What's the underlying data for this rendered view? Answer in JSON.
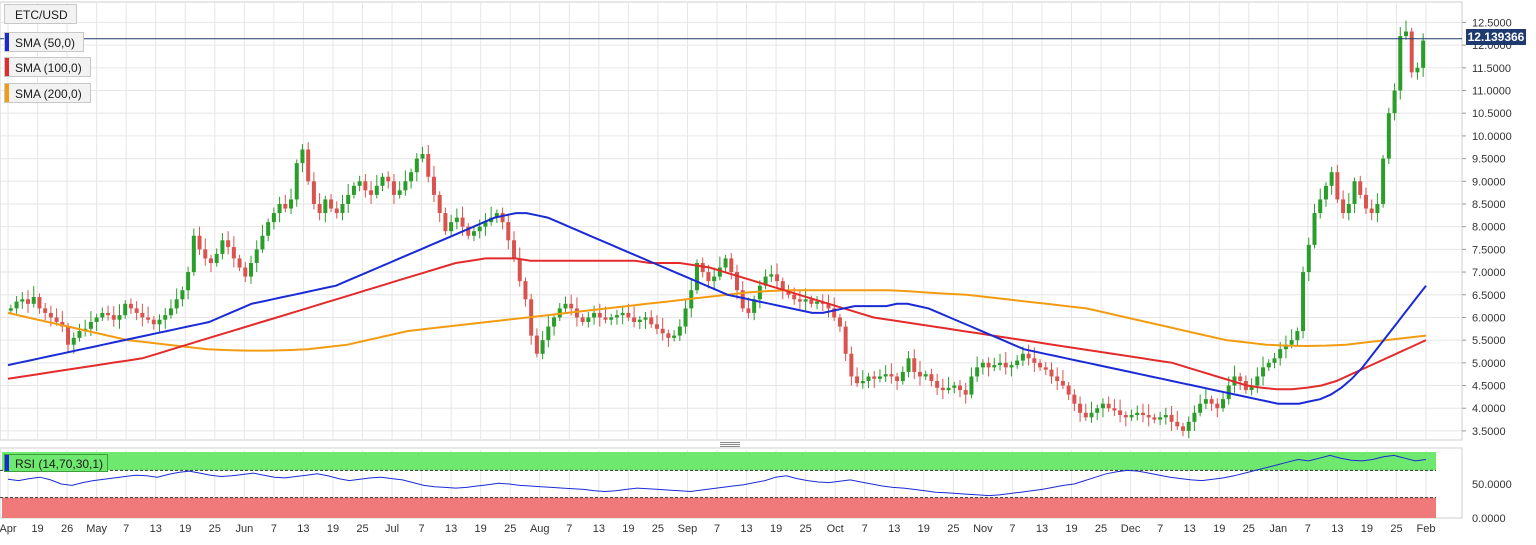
{
  "legend": {
    "symbol": "ETC/USD",
    "sma50": "SMA (50,0)",
    "sma100": "SMA (100,0)",
    "sma200": "SMA (200,0)",
    "rsi": "RSI (14,70,30,1)"
  },
  "colors": {
    "bull": "#2a9d2a",
    "bear": "#d9534f",
    "sma50": "#1a2bd6",
    "sma100": "#e32b2b",
    "sma200": "#f39c12",
    "price_line": "#1e3a6e",
    "rsi_overbought": "#6ee86e",
    "rsi_oversold": "#f07a7a",
    "rsi_line": "#1a2bd6",
    "grid": "#e6e6e6",
    "axis_text": "#333333"
  },
  "chart_data": [
    {
      "type": "candlestick",
      "title": "ETC/USD",
      "timeframe": "daily",
      "last_price": "12.139366",
      "y_ticks": [
        "3.5000",
        "4.0000",
        "4.5000",
        "5.0000",
        "5.5000",
        "6.0000",
        "6.5000",
        "7.0000",
        "7.5000",
        "8.0000",
        "8.5000",
        "9.0000",
        "9.5000",
        "10.0000",
        "10.5000",
        "11.0000",
        "11.5000",
        "12.0000",
        "12.5000"
      ],
      "ylim": [
        3.3,
        12.95
      ],
      "x_ticks": [
        "Apr",
        "19",
        "26",
        "May",
        "7",
        "13",
        "19",
        "25",
        "Jun",
        "7",
        "13",
        "19",
        "25",
        "Jul",
        "7",
        "13",
        "19",
        "25",
        "Aug",
        "7",
        "13",
        "19",
        "25",
        "Sep",
        "7",
        "13",
        "19",
        "25",
        "Oct",
        "7",
        "13",
        "19",
        "25",
        "Nov",
        "7",
        "13",
        "19",
        "25",
        "Dec",
        "7",
        "13",
        "19",
        "25",
        "Jan",
        "7",
        "13",
        "19",
        "25",
        "Feb"
      ],
      "close": [
        6.2,
        6.35,
        6.4,
        6.3,
        6.45,
        6.2,
        6.1,
        6.0,
        5.9,
        5.8,
        5.4,
        5.55,
        5.7,
        5.75,
        5.9,
        6.0,
        6.1,
        6.05,
        5.95,
        6.05,
        6.3,
        6.2,
        6.1,
        6.0,
        5.95,
        5.85,
        5.95,
        6.05,
        6.2,
        6.4,
        6.6,
        7.0,
        7.8,
        7.5,
        7.3,
        7.2,
        7.4,
        7.7,
        7.55,
        7.3,
        7.1,
        6.9,
        7.2,
        7.5,
        7.8,
        8.1,
        8.3,
        8.5,
        8.4,
        8.6,
        9.4,
        9.7,
        9.0,
        8.5,
        8.3,
        8.6,
        8.4,
        8.3,
        8.5,
        8.7,
        8.9,
        9.0,
        8.8,
        8.7,
        8.9,
        9.1,
        9.0,
        8.7,
        8.8,
        9.0,
        9.2,
        9.5,
        9.6,
        9.1,
        8.7,
        8.3,
        7.9,
        8.1,
        8.2,
        8.0,
        7.8,
        7.9,
        8.0,
        8.1,
        8.2,
        8.3,
        8.1,
        7.7,
        7.3,
        6.8,
        6.4,
        5.6,
        5.2,
        5.5,
        5.8,
        6.0,
        6.2,
        6.3,
        6.2,
        6.0,
        5.9,
        6.0,
        6.1,
        6.0,
        5.95,
        6.0,
        6.05,
        6.1,
        6.0,
        5.9,
        5.95,
        6.0,
        5.85,
        5.75,
        5.65,
        5.55,
        5.6,
        5.8,
        6.2,
        6.6,
        7.2,
        7.0,
        6.8,
        6.9,
        7.1,
        7.3,
        7.0,
        6.6,
        6.2,
        6.1,
        6.4,
        6.7,
        6.9,
        6.95,
        6.8,
        6.6,
        6.5,
        6.4,
        6.35,
        6.4,
        6.3,
        6.35,
        6.3,
        6.2,
        6.0,
        5.8,
        5.2,
        4.7,
        4.55,
        4.6,
        4.7,
        4.65,
        4.7,
        4.75,
        4.7,
        4.6,
        4.8,
        5.1,
        4.8,
        4.7,
        4.75,
        4.6,
        4.45,
        4.4,
        4.45,
        4.5,
        4.4,
        4.3,
        4.7,
        4.9,
        5.0,
        4.9,
        4.95,
        5.0,
        4.9,
        4.95,
        5.05,
        5.2,
        5.1,
        5.0,
        4.9,
        4.85,
        4.7,
        4.6,
        4.5,
        4.3,
        4.1,
        3.9,
        3.8,
        3.9,
        4.0,
        4.1,
        4.0,
        3.95,
        3.85,
        3.8,
        3.85,
        3.9,
        3.85,
        3.8,
        3.75,
        3.8,
        3.85,
        3.7,
        3.6,
        3.5,
        3.7,
        3.9,
        4.1,
        4.2,
        4.1,
        4.0,
        4.2,
        4.5,
        4.7,
        4.6,
        4.4,
        4.5,
        4.7,
        4.9,
        5.0,
        5.1,
        5.3,
        5.4,
        5.5,
        5.7,
        7.0,
        7.6,
        8.3,
        8.6,
        8.9,
        9.2,
        8.6,
        8.3,
        8.5,
        9.0,
        8.7,
        8.4,
        8.3,
        8.5,
        9.5,
        10.5,
        11.0,
        12.2,
        12.3,
        11.4,
        11.5,
        12.1
      ],
      "sma50": [
        4.95,
        5.0,
        5.05,
        5.1,
        5.15,
        5.2,
        5.25,
        5.3,
        5.35,
        5.4,
        5.45,
        5.5,
        5.55,
        5.6,
        5.65,
        5.7,
        5.75,
        5.8,
        5.85,
        5.9,
        6.0,
        6.1,
        6.2,
        6.3,
        6.35,
        6.4,
        6.45,
        6.5,
        6.55,
        6.6,
        6.65,
        6.7,
        6.8,
        6.9,
        7.0,
        7.1,
        7.2,
        7.3,
        7.4,
        7.5,
        7.6,
        7.7,
        7.8,
        7.9,
        8.0,
        8.1,
        8.2,
        8.25,
        8.3,
        8.3,
        8.25,
        8.2,
        8.1,
        8.0,
        7.9,
        7.8,
        7.7,
        7.6,
        7.5,
        7.4,
        7.3,
        7.2,
        7.1,
        7.0,
        6.9,
        6.8,
        6.7,
        6.6,
        6.5,
        6.45,
        6.4,
        6.35,
        6.3,
        6.25,
        6.2,
        6.15,
        6.1,
        6.1,
        6.15,
        6.2,
        6.25,
        6.25,
        6.25,
        6.25,
        6.3,
        6.3,
        6.25,
        6.2,
        6.1,
        6.0,
        5.9,
        5.8,
        5.7,
        5.6,
        5.5,
        5.4,
        5.3,
        5.25,
        5.2,
        5.15,
        5.1,
        5.05,
        5.0,
        4.95,
        4.9,
        4.85,
        4.8,
        4.75,
        4.7,
        4.65,
        4.6,
        4.55,
        4.5,
        4.45,
        4.4,
        4.35,
        4.3,
        4.25,
        4.2,
        4.15,
        4.1,
        4.1,
        4.1,
        4.15,
        4.2,
        4.3,
        4.45,
        4.65,
        4.9,
        5.2,
        5.5,
        5.8,
        6.1,
        6.4,
        6.7
      ],
      "sma100": [
        4.65,
        4.7,
        4.75,
        4.8,
        4.85,
        4.9,
        4.95,
        5.0,
        5.05,
        5.1,
        5.2,
        5.3,
        5.4,
        5.5,
        5.6,
        5.7,
        5.8,
        5.9,
        6.0,
        6.1,
        6.2,
        6.3,
        6.4,
        6.5,
        6.6,
        6.7,
        6.8,
        6.9,
        7.0,
        7.1,
        7.2,
        7.25,
        7.3,
        7.3,
        7.3,
        7.25,
        7.25,
        7.25,
        7.25,
        7.25,
        7.25,
        7.25,
        7.25,
        7.2,
        7.2,
        7.2,
        7.15,
        7.1,
        7.0,
        6.9,
        6.8,
        6.7,
        6.6,
        6.5,
        6.4,
        6.3,
        6.2,
        6.1,
        6.0,
        5.95,
        5.9,
        5.85,
        5.8,
        5.75,
        5.7,
        5.65,
        5.6,
        5.55,
        5.5,
        5.45,
        5.4,
        5.35,
        5.3,
        5.25,
        5.2,
        5.15,
        5.1,
        5.05,
        5.0,
        4.9,
        4.8,
        4.7,
        4.6,
        4.5,
        4.45,
        4.42,
        4.42,
        4.45,
        4.5,
        4.6,
        4.75,
        4.9,
        5.05,
        5.2,
        5.35,
        5.5
      ],
      "sma200": [
        6.1,
        6.0,
        5.9,
        5.8,
        5.7,
        5.6,
        5.5,
        5.45,
        5.4,
        5.35,
        5.3,
        5.28,
        5.27,
        5.27,
        5.28,
        5.3,
        5.35,
        5.4,
        5.5,
        5.6,
        5.7,
        5.75,
        5.8,
        5.85,
        5.9,
        5.95,
        6.0,
        6.05,
        6.1,
        6.15,
        6.2,
        6.25,
        6.3,
        6.35,
        6.4,
        6.45,
        6.5,
        6.55,
        6.58,
        6.6,
        6.6,
        6.6,
        6.6,
        6.6,
        6.6,
        6.58,
        6.55,
        6.52,
        6.5,
        6.45,
        6.4,
        6.35,
        6.3,
        6.25,
        6.2,
        6.1,
        6.0,
        5.9,
        5.8,
        5.7,
        5.6,
        5.5,
        5.45,
        5.4,
        5.38,
        5.37,
        5.38,
        5.4,
        5.45,
        5.5,
        5.55,
        5.6
      ]
    },
    {
      "type": "line",
      "title": "RSI (14,70,30,1)",
      "y_ticks": [
        "0.0000",
        "50.0000"
      ],
      "ylim": [
        0,
        100
      ],
      "overbought": 70,
      "oversold": 30,
      "values": [
        57,
        55,
        58,
        60,
        56,
        50,
        48,
        52,
        55,
        57,
        59,
        61,
        63,
        62,
        60,
        64,
        67,
        69,
        66,
        63,
        61,
        62,
        64,
        66,
        63,
        60,
        59,
        61,
        63,
        65,
        62,
        58,
        55,
        57,
        59,
        60,
        58,
        56,
        52,
        48,
        46,
        45,
        44,
        45,
        47,
        49,
        51,
        50,
        48,
        47,
        46,
        45,
        44,
        43,
        42,
        40,
        39,
        40,
        42,
        44,
        43,
        42,
        41,
        40,
        39,
        41,
        43,
        45,
        47,
        49,
        52,
        55,
        60,
        62,
        58,
        55,
        53,
        52,
        54,
        56,
        53,
        50,
        47,
        45,
        44,
        42,
        40,
        38,
        37,
        36,
        35,
        34,
        33,
        34,
        36,
        38,
        40,
        42,
        45,
        48,
        50,
        55,
        60,
        65,
        68,
        70,
        69,
        66,
        63,
        60,
        58,
        56,
        55,
        57,
        59,
        62,
        66,
        70,
        74,
        78,
        82,
        86,
        84,
        88,
        92,
        88,
        85,
        84,
        86,
        90,
        92,
        88,
        84,
        86
      ]
    }
  ]
}
